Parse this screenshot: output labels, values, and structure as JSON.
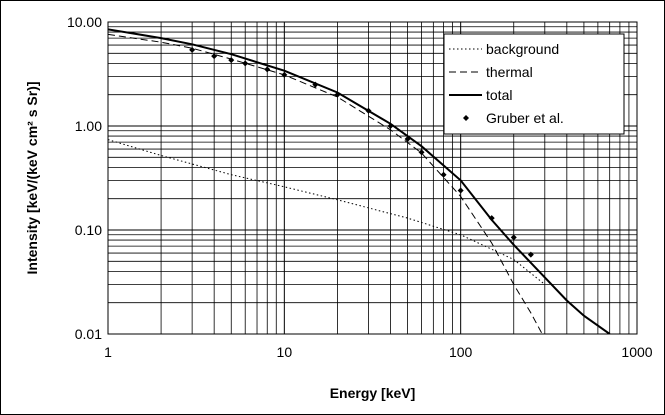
{
  "chart_data": {
    "type": "line",
    "xlabel": "Energy [keV]",
    "ylabel": "Intensity [keV/(keV cm² s Sr)]",
    "xscale": "log",
    "yscale": "log",
    "xlim": [
      1,
      1000
    ],
    "ylim": [
      0.01,
      10
    ],
    "xticks": [
      "1",
      "10",
      "100",
      "1000"
    ],
    "yticks": [
      "10.00",
      "1.00",
      "0.10",
      "0.01"
    ],
    "grid": "major and minor",
    "legend_position": "top-right",
    "series": [
      {
        "name": "background",
        "style": "dotted",
        "x": [
          1,
          2,
          5,
          10,
          20,
          50,
          100,
          200,
          300
        ],
        "y": [
          0.74,
          0.52,
          0.34,
          0.26,
          0.195,
          0.13,
          0.09,
          0.052,
          0.03
        ]
      },
      {
        "name": "thermal",
        "style": "dashed",
        "x": [
          1,
          2,
          3,
          5,
          10,
          20,
          40,
          60,
          100,
          150,
          200,
          250,
          290
        ],
        "y": [
          7.6,
          6.4,
          5.6,
          4.4,
          3.1,
          1.9,
          0.92,
          0.55,
          0.21,
          0.075,
          0.03,
          0.016,
          0.01
        ]
      },
      {
        "name": "total",
        "style": "solid",
        "x": [
          1,
          2,
          3,
          5,
          10,
          20,
          40,
          60,
          100,
          150,
          200,
          300,
          400,
          500,
          700
        ],
        "y": [
          8.5,
          7.0,
          6.1,
          4.9,
          3.4,
          2.1,
          1.05,
          0.64,
          0.3,
          0.125,
          0.072,
          0.035,
          0.021,
          0.015,
          0.01
        ]
      },
      {
        "name": "Gruber et al.",
        "style": "markers",
        "x": [
          3,
          4,
          5,
          6,
          8,
          10,
          15,
          20,
          30,
          40,
          50,
          60,
          80,
          100,
          150,
          200,
          250
        ],
        "y": [
          5.4,
          4.7,
          4.3,
          4.0,
          3.5,
          3.1,
          2.5,
          2.0,
          1.4,
          1.0,
          0.75,
          0.56,
          0.34,
          0.24,
          0.13,
          0.085,
          0.058
        ]
      }
    ]
  }
}
